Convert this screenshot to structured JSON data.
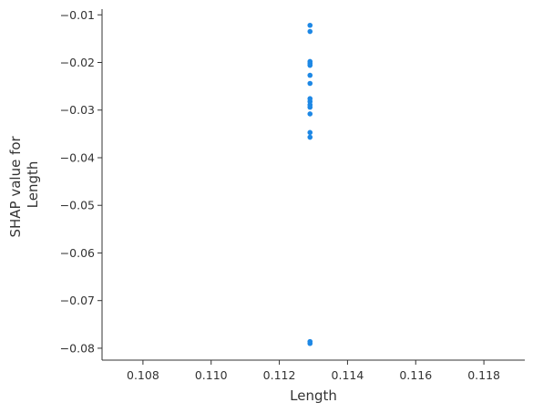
{
  "chart_data": {
    "type": "scatter",
    "title": "",
    "xlabel": "Length",
    "ylabel_lines": [
      "SHAP value for",
      "Length"
    ],
    "xlim": [
      0.1068,
      0.1192
    ],
    "ylim": [
      -0.0825,
      -0.0088
    ],
    "x_ticks": [
      0.108,
      0.11,
      0.112,
      0.114,
      0.116,
      0.118
    ],
    "x_tick_labels": [
      "0.108",
      "0.110",
      "0.112",
      "0.114",
      "0.116",
      "0.118"
    ],
    "y_ticks": [
      -0.01,
      -0.02,
      -0.03,
      -0.04,
      -0.05,
      -0.06,
      -0.07,
      -0.08
    ],
    "y_tick_labels": [
      "−0.01",
      "−0.02",
      "−0.03",
      "−0.04",
      "−0.05",
      "−0.06",
      "−0.07",
      "−0.08"
    ],
    "grid": false,
    "point_color": "#1E88E5",
    "points": [
      {
        "x": 0.1129,
        "y": -0.0122
      },
      {
        "x": 0.1129,
        "y": -0.0135
      },
      {
        "x": 0.1129,
        "y": -0.0198
      },
      {
        "x": 0.1129,
        "y": -0.0202
      },
      {
        "x": 0.1129,
        "y": -0.0206
      },
      {
        "x": 0.1129,
        "y": -0.0227
      },
      {
        "x": 0.1129,
        "y": -0.0244
      },
      {
        "x": 0.1129,
        "y": -0.0276
      },
      {
        "x": 0.1129,
        "y": -0.0282
      },
      {
        "x": 0.1129,
        "y": -0.0289
      },
      {
        "x": 0.1129,
        "y": -0.0294
      },
      {
        "x": 0.1129,
        "y": -0.0308
      },
      {
        "x": 0.1129,
        "y": -0.0347
      },
      {
        "x": 0.1129,
        "y": -0.0357
      },
      {
        "x": 0.1129,
        "y": -0.0786
      },
      {
        "x": 0.1129,
        "y": -0.079
      }
    ]
  }
}
